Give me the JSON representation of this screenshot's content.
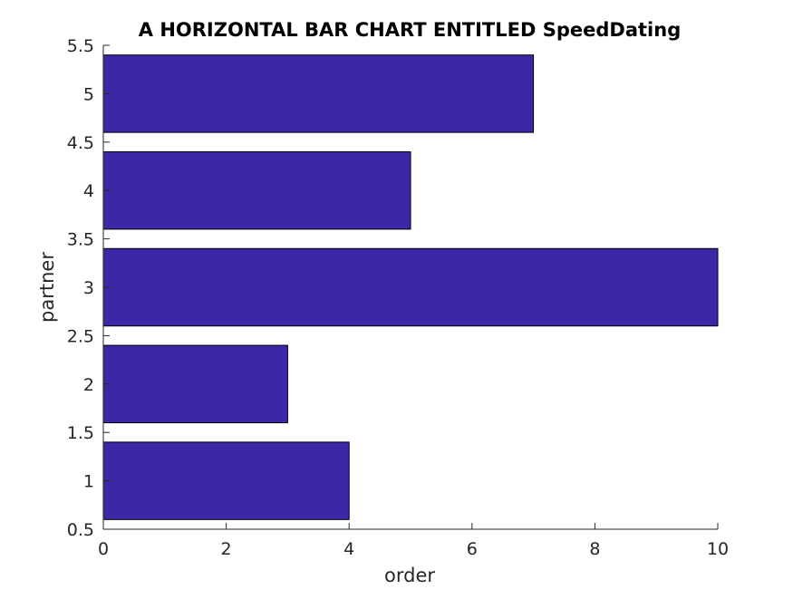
{
  "chart_data": {
    "type": "bar",
    "orientation": "horizontal",
    "title": "A HORIZONTAL BAR CHART ENTITLED SpeedDating",
    "xlabel": "order",
    "ylabel": "partner",
    "categories": [
      1,
      2,
      3,
      4,
      5
    ],
    "values": [
      4,
      3,
      10,
      5,
      7
    ],
    "xlim": [
      0,
      10
    ],
    "ylim": [
      0.5,
      5.5
    ],
    "xticks": [
      "0",
      "2",
      "4",
      "6",
      "8",
      "10"
    ],
    "yticks": [
      "0.5",
      "1",
      "1.5",
      "2",
      "2.5",
      "3",
      "3.5",
      "4",
      "4.5",
      "5",
      "5.5"
    ],
    "bar_color": "#3c28a6",
    "grid": false,
    "legend": "none"
  }
}
